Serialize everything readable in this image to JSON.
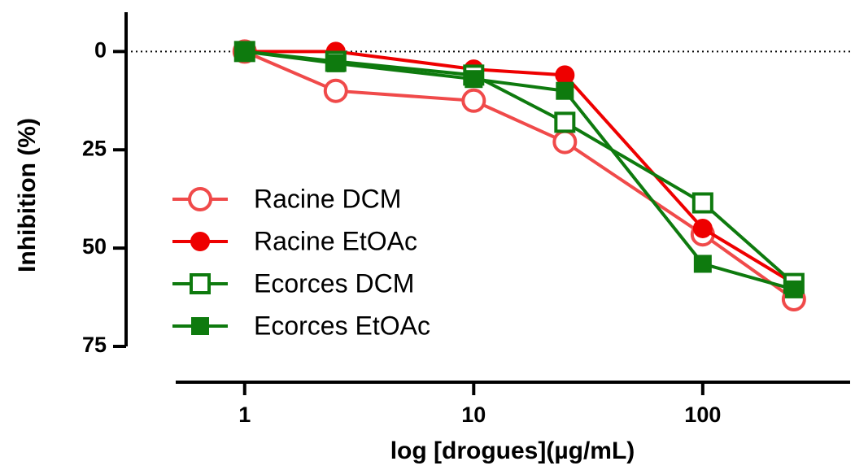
{
  "chart_data": {
    "type": "line",
    "x_label": "log [drogues](µg/mL)",
    "y_label": "Inhibition (%)",
    "x": [
      1,
      2.5,
      10,
      25,
      100,
      250
    ],
    "xlim": [
      0.5,
      440
    ],
    "xscale": "log",
    "xticks": [
      1,
      10,
      100
    ],
    "ylim": [
      75,
      -10
    ],
    "yticks": [
      0,
      25,
      50,
      75
    ],
    "reference_line": 0,
    "legend": "left",
    "series": [
      {
        "name": "Racine DCM",
        "color": "#f04a4a",
        "marker": "open-circle",
        "values": [
          0,
          10,
          12.5,
          23,
          46.5,
          63
        ]
      },
      {
        "name": "Racine EtOAc",
        "color": "#ee0000",
        "marker": "filled-circle",
        "values": [
          0,
          0,
          4.5,
          6,
          45,
          59
        ]
      },
      {
        "name": "Ecorces DCM",
        "color": "#0e7a0e",
        "marker": "open-square",
        "values": [
          0,
          2.5,
          6,
          18,
          38.5,
          59
        ]
      },
      {
        "name": "Ecorces EtOAc",
        "color": "#0e7a0e",
        "marker": "filled-square",
        "values": [
          0,
          3,
          7,
          10,
          54,
          60.5
        ]
      }
    ]
  }
}
